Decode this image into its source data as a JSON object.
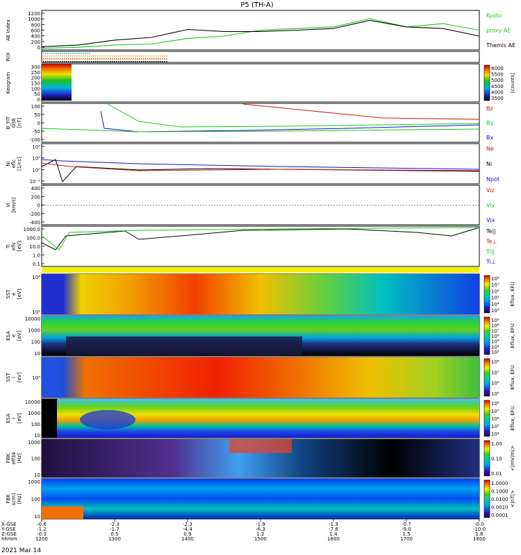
{
  "title": "P5 (TH-A)",
  "date": "2021 Mar 14",
  "colors": {
    "black": "#000000",
    "green": "#18c818",
    "red": "#d01010",
    "blue": "#1010c8"
  },
  "panels": [
    {
      "id": "ae",
      "ylabel": [
        "AE Index"
      ],
      "yticks": [
        "1200",
        "1000",
        "800",
        "600",
        "400",
        "200",
        "0"
      ],
      "legend": [
        {
          "text": "Kyoto",
          "color": "green"
        },
        {
          "text": "proxy AE",
          "color": "green"
        },
        {
          "text": "Themis AE",
          "color": "black"
        }
      ]
    },
    {
      "id": "roi",
      "ylabel": [
        "ROI"
      ],
      "yticks": [],
      "legend": []
    },
    {
      "id": "keogram",
      "ylabel": [
        "Keogram"
      ],
      "yticks": [
        "300",
        "250",
        "200",
        "150",
        "100",
        "50",
        "0"
      ],
      "legend": [],
      "cbar": {
        "ticks": [
          "6000",
          "5500",
          "5000",
          "4500",
          "4000",
          "3500"
        ],
        "label": "[counts]"
      }
    },
    {
      "id": "bfit",
      "ylabel": [
        "B_FIT",
        "GSE",
        "[nT]"
      ],
      "yticks": [
        "100",
        "50",
        "0",
        "-50",
        "-100"
      ],
      "legend": [
        {
          "text": "Bz",
          "color": "red"
        },
        {
          "text": "By",
          "color": "green"
        },
        {
          "text": "Bx",
          "color": "blue"
        }
      ]
    },
    {
      "id": "ni",
      "ylabel": [
        "Ni",
        "eflc",
        "[1/cc]"
      ],
      "yticks": [
        "10⁴",
        "10²",
        "10⁰",
        "10⁻²"
      ],
      "legend": [
        {
          "text": "Ne",
          "color": "red"
        },
        {
          "text": "Ni",
          "color": "black"
        },
        {
          "text": "Npot",
          "color": "blue"
        }
      ]
    },
    {
      "id": "vi",
      "ylabel": [
        "Vi",
        "[km/s]"
      ],
      "yticks": [
        "400",
        "200",
        "0",
        "-200",
        "-400"
      ],
      "legend": [
        {
          "text": "Viz",
          "color": "red"
        },
        {
          "text": "Viy",
          "color": "green"
        },
        {
          "text": "Vix",
          "color": "blue"
        }
      ]
    },
    {
      "id": "ti",
      "ylabel": [
        "Ti",
        "eflc",
        "[eV]"
      ],
      "yticks": [
        "1000.0",
        "100.0",
        "10.0",
        "1.0",
        "0.1"
      ],
      "legend": [
        {
          "text": "Te||",
          "color": "black"
        },
        {
          "text": "Te⊥",
          "color": "red"
        },
        {
          "text": "Ti||",
          "color": "green"
        },
        {
          "text": "Ti⊥",
          "color": "blue"
        }
      ]
    },
    {
      "id": "sst_e",
      "ylabel": [
        "SST",
        "e",
        "[eV]"
      ],
      "yticks": [
        "10⁴",
        "10²"
      ],
      "legend": [],
      "cbar": {
        "ticks": [
          "10⁸",
          "10⁷",
          "10⁶",
          "10⁵",
          "10⁴",
          "10³"
        ],
        "label": "Eflux, EFU"
      }
    },
    {
      "id": "esa_e",
      "ylabel": [
        "ESA",
        "e",
        "[eV]"
      ],
      "yticks": [
        "10000",
        "1000",
        "100",
        "10"
      ],
      "legend": [],
      "cbar": {
        "ticks": [
          "10⁹",
          "10⁸",
          "10⁷",
          "10⁶",
          "10⁵",
          "10⁴",
          "10³"
        ],
        "label": "Eflux, EFU"
      }
    },
    {
      "id": "sst_i",
      "ylabel": [
        "SST",
        "i",
        "[eV]"
      ],
      "yticks": [
        "10⁵"
      ],
      "legend": [],
      "cbar": {
        "ticks": [
          "10⁸",
          "10⁷",
          "10⁶",
          "10⁵"
        ],
        "label": "Eflux, EFU"
      }
    },
    {
      "id": "esa_i",
      "ylabel": [
        "ESA",
        "i",
        "[eV]"
      ],
      "yticks": [
        "10000",
        "1000",
        "100",
        "10"
      ],
      "legend": [],
      "cbar": {
        "ticks": [
          "10⁸",
          "10⁷",
          "10⁶",
          "10⁵",
          "10⁴"
        ],
        "label": "Eflux, EFU"
      }
    },
    {
      "id": "fbk_e",
      "ylabel": [
        "FBK",
        "eff34",
        "[Hz]"
      ],
      "yticks": [
        "1000",
        "100",
        "10"
      ],
      "legend": [],
      "cbar": {
        "ticks": [
          "1.00",
          "0.10",
          "0.01"
        ],
        "label": "<|mV/m|>"
      }
    },
    {
      "id": "fbk_b",
      "ylabel": [
        "FBK",
        "scm1",
        "[Hz]"
      ],
      "yticks": [
        "1000",
        "100",
        "10"
      ],
      "legend": [],
      "cbar": {
        "ticks": [
          "1.0000",
          "0.1000",
          "0.0100",
          "0.0010",
          "0.0001"
        ],
        "label": "<|nT|>"
      }
    }
  ],
  "xaxis": {
    "row_labels": [
      "X-GSE",
      "Y-GSE",
      "Z-GSE",
      "hhmm"
    ],
    "columns": [
      [
        "-0.6",
        "-1.2",
        "-0.3",
        "1200"
      ],
      [
        "-2.3",
        "-1.7",
        "0.5",
        "1300"
      ],
      [
        "-2.3",
        "-4.4",
        "0.9",
        "1400"
      ],
      [
        "-1.9",
        "-6.3",
        "1.2",
        "1500"
      ],
      [
        "-1.3",
        "-7.8",
        "1.4",
        "1600"
      ],
      [
        "-0.7",
        "-9.0",
        "1.5",
        "1700"
      ],
      [
        "-0.0",
        "-10.0",
        "1.6",
        "1800"
      ]
    ]
  },
  "chart_data": {
    "type": "line",
    "x_unit": "hhmm UT",
    "x": [
      "1200",
      "1230",
      "1300",
      "1330",
      "1400",
      "1430",
      "1500",
      "1530",
      "1600",
      "1630",
      "1700",
      "1730",
      "1800"
    ],
    "ae_series": [
      {
        "name": "Kyoto",
        "values": [
          50,
          80,
          150,
          180,
          350,
          420,
          600,
          650,
          700,
          950,
          700,
          800,
          600
        ]
      },
      {
        "name": "Themis AE",
        "values": [
          100,
          150,
          300,
          380,
          620,
          560,
          560,
          600,
          650,
          900,
          700,
          650,
          420
        ]
      }
    ],
    "ylim_ae": [
      0,
      1200
    ]
  }
}
